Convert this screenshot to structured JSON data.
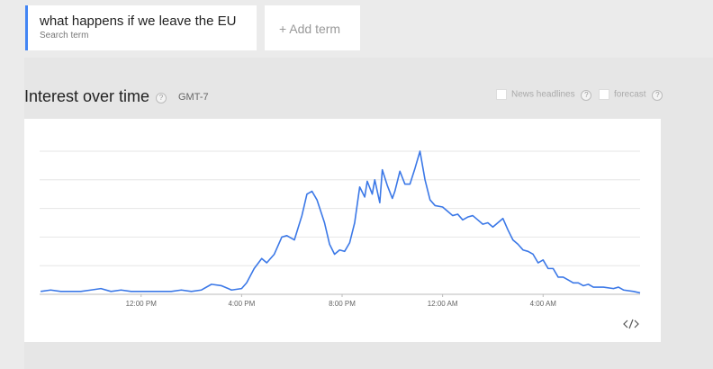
{
  "search_term": {
    "label": "what happens if we leave the EU",
    "sublabel": "Search term"
  },
  "add_term": "+ Add term",
  "section": {
    "title": "Interest over time",
    "help": "?",
    "timezone": "GMT-7"
  },
  "options": [
    {
      "label": "News headlines",
      "help": "?"
    },
    {
      "label": "forecast",
      "help": "?"
    }
  ],
  "chart_data": {
    "type": "line",
    "color": "#3b78e7",
    "grid": true,
    "x": [
      8.0,
      8.4,
      8.8,
      9.2,
      9.6,
      10.0,
      10.4,
      10.8,
      11.2,
      11.6,
      12.0,
      12.4,
      12.8,
      13.2,
      13.6,
      14.0,
      14.4,
      14.8,
      15.2,
      15.6,
      16.0,
      16.2,
      16.5,
      16.8,
      17.0,
      17.3,
      17.6,
      17.8,
      18.1,
      18.4,
      18.6,
      18.8,
      19.0,
      19.3,
      19.5,
      19.7,
      19.9,
      20.1,
      20.3,
      20.5,
      20.7,
      20.9,
      21.0,
      21.2,
      21.3,
      21.5,
      21.6,
      21.8,
      22.0,
      22.1,
      22.3,
      22.5,
      22.7,
      22.9,
      23.1,
      23.3,
      23.5,
      23.7,
      24.0,
      24.2,
      24.4,
      24.6,
      24.8,
      25.0,
      25.2,
      25.4,
      25.6,
      25.8,
      26.0,
      26.2,
      26.4,
      26.6,
      26.8,
      27.0,
      27.2,
      27.4,
      27.6,
      27.8,
      28.0,
      28.2,
      28.4,
      28.6,
      28.8,
      29.0,
      29.2,
      29.4,
      29.6,
      29.8,
      30.0,
      30.4,
      30.8,
      31.0,
      31.2,
      31.6,
      31.86
    ],
    "values": [
      2,
      3,
      2,
      2,
      2,
      3,
      4,
      2,
      3,
      2,
      2,
      2,
      2,
      2,
      3,
      2,
      3,
      7,
      6,
      3,
      4,
      8,
      18,
      25,
      22,
      28,
      40,
      41,
      38,
      55,
      70,
      72,
      66,
      50,
      35,
      28,
      31,
      30,
      36,
      50,
      75,
      68,
      79,
      70,
      80,
      64,
      87,
      76,
      67,
      72,
      86,
      77,
      77,
      88,
      100,
      80,
      66,
      62,
      61,
      58,
      55,
      56,
      52,
      54,
      55,
      52,
      49,
      50,
      47,
      50,
      53,
      45,
      38,
      35,
      31,
      30,
      28,
      22,
      24,
      18,
      18,
      12,
      12,
      10,
      8,
      8,
      6,
      7,
      5,
      5,
      4,
      5,
      3,
      2,
      1
    ],
    "xlim": [
      7.96,
      31.86
    ],
    "xticks": [
      {
        "value": 12,
        "label": "12:00 PM"
      },
      {
        "value": 16,
        "label": "4:00 PM"
      },
      {
        "value": 20,
        "label": "8:00 PM"
      },
      {
        "value": 24,
        "label": "12:00 AM"
      },
      {
        "value": 28,
        "label": "4:00 AM"
      }
    ],
    "ylim": [
      0,
      100
    ],
    "yticks": [
      0,
      20,
      40,
      60,
      80,
      100
    ]
  }
}
